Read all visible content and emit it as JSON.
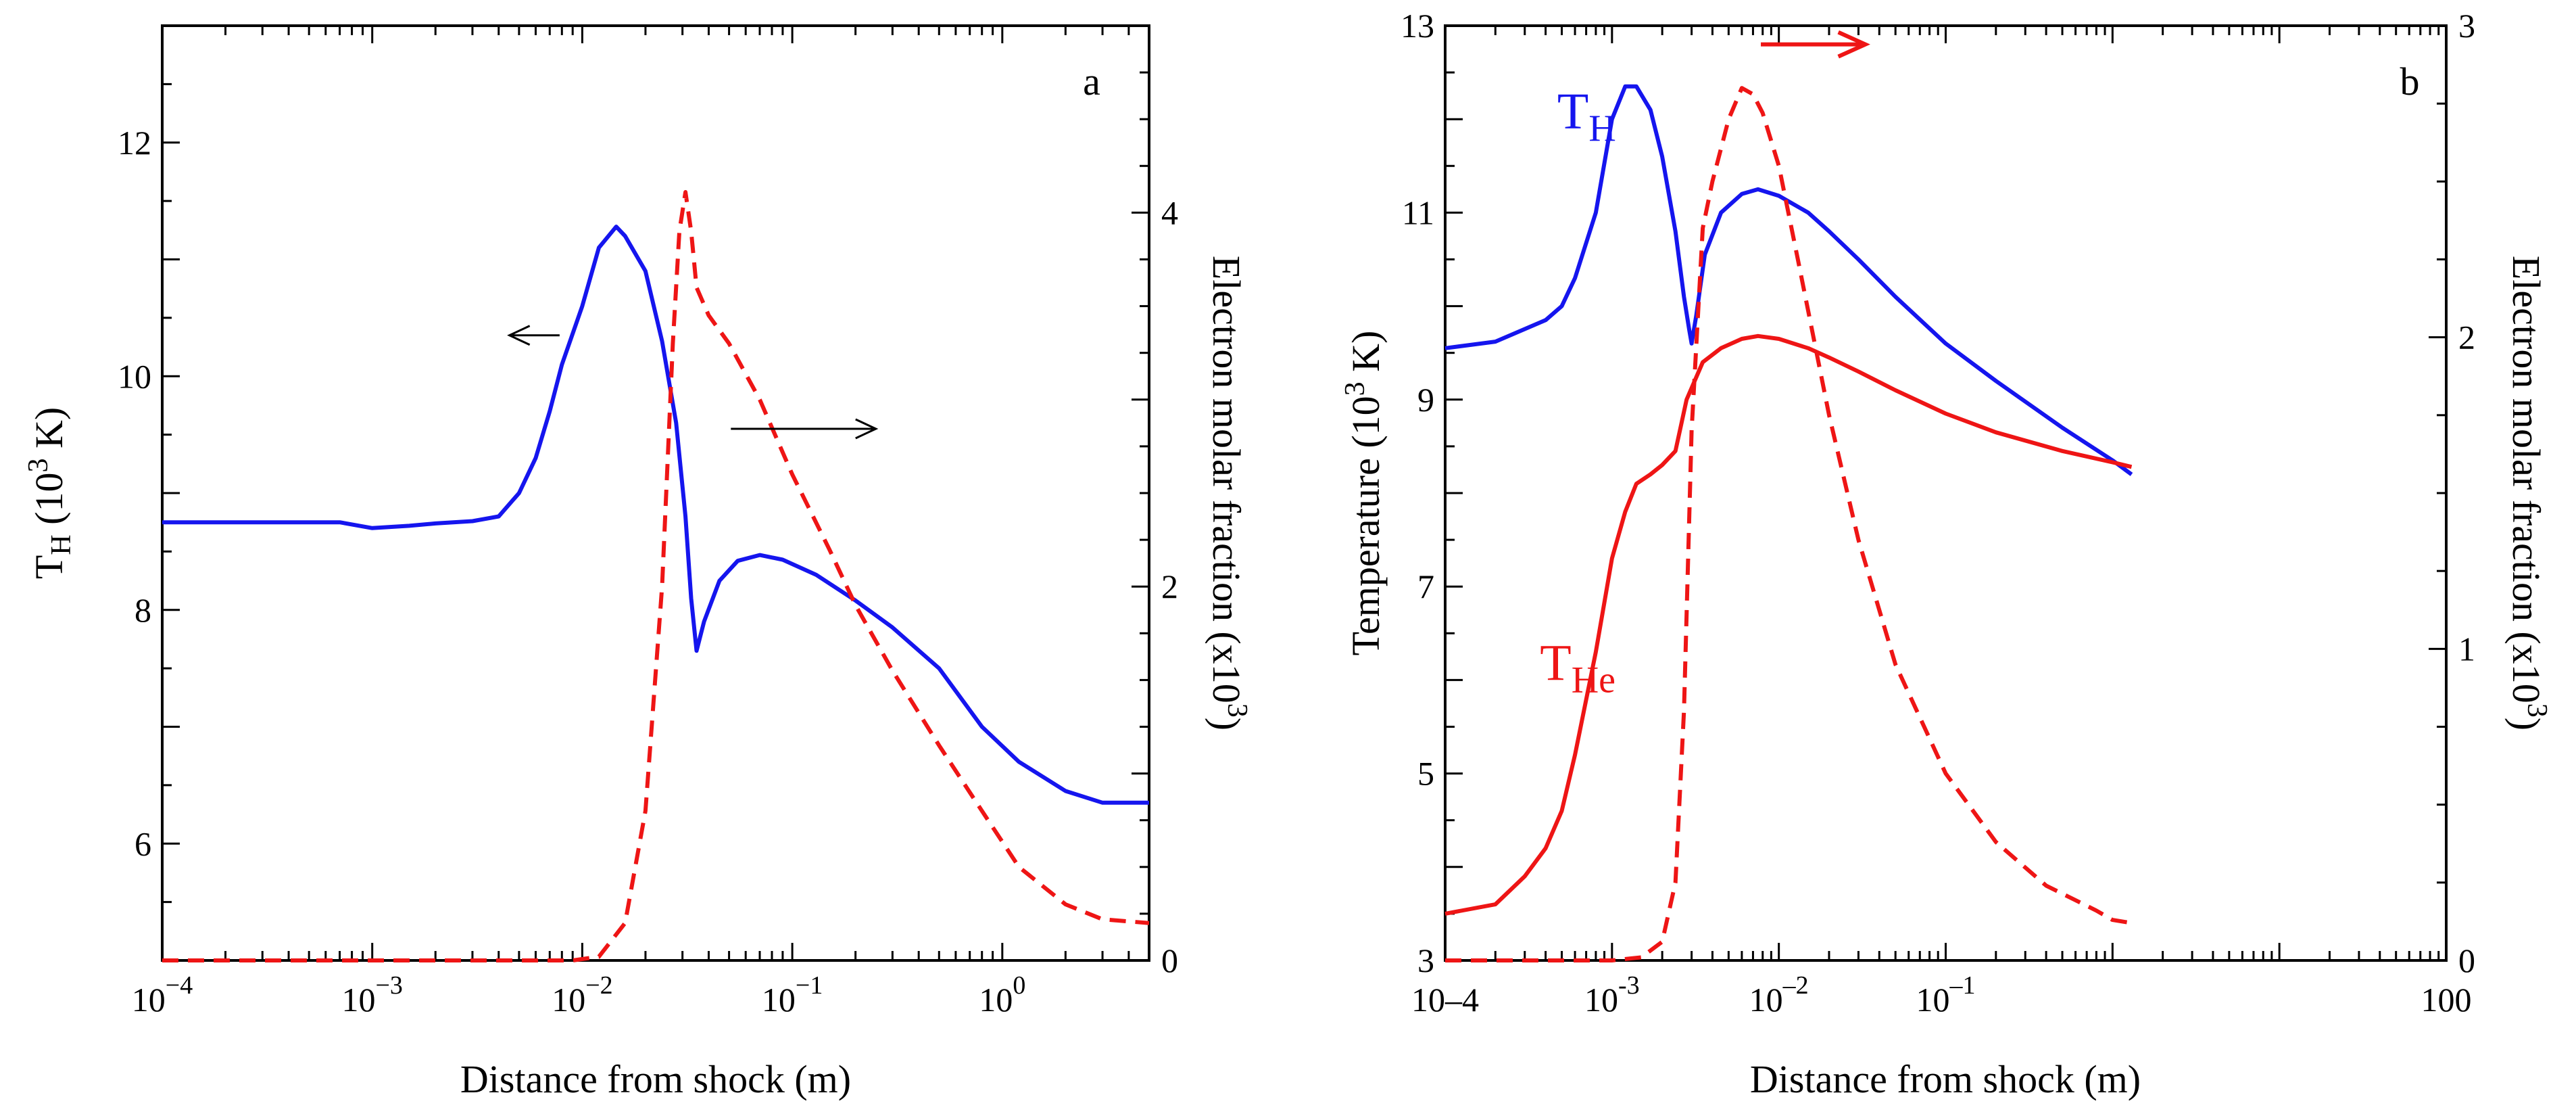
{
  "colors": {
    "blue": "#1515ee",
    "red": "#ee1515",
    "black": "#000000"
  },
  "chart_data": [
    {
      "type": "line",
      "panel_label": "a",
      "xscale": "log",
      "xlim": [
        0.0001,
        5
      ],
      "xlabel": "Distance from shock (m)",
      "x_ticks": [
        {
          "x": 0.0001,
          "base": "10",
          "exp": "−4"
        },
        {
          "x": 0.001,
          "base": "10",
          "exp": "−3"
        },
        {
          "x": 0.01,
          "base": "10",
          "exp": "−2"
        },
        {
          "x": 0.1,
          "base": "10",
          "exp": "−1"
        },
        {
          "x": 1,
          "base": "10",
          "exp": "0"
        }
      ],
      "ylim_left": [
        5,
        13
      ],
      "ylabel_left": {
        "main": "T",
        "sub": "H",
        "rest": " (10",
        "sup": "3",
        "tail": " K)"
      },
      "yticks_left": [
        6,
        8,
        10,
        12
      ],
      "ylim_right": [
        0,
        5
      ],
      "ylabel_right": {
        "text": "Electron molar fraction (x10",
        "sup": "3",
        "tail": ")"
      },
      "yticks_right": [
        0,
        2,
        4
      ],
      "series": [
        {
          "name": "T_H",
          "axis": "left",
          "color": "blue",
          "style": "solid",
          "points": [
            [
              0.0001,
              8.75
            ],
            [
              0.0002,
              8.75
            ],
            [
              0.0004,
              8.75
            ],
            [
              0.0007,
              8.75
            ],
            [
              0.001,
              8.7
            ],
            [
              0.0015,
              8.72
            ],
            [
              0.002,
              8.74
            ],
            [
              0.003,
              8.76
            ],
            [
              0.004,
              8.8
            ],
            [
              0.005,
              9.0
            ],
            [
              0.006,
              9.3
            ],
            [
              0.007,
              9.7
            ],
            [
              0.008,
              10.1
            ],
            [
              0.01,
              10.6
            ],
            [
              0.012,
              11.1
            ],
            [
              0.0145,
              11.28
            ],
            [
              0.016,
              11.2
            ],
            [
              0.02,
              10.9
            ],
            [
              0.024,
              10.3
            ],
            [
              0.028,
              9.6
            ],
            [
              0.031,
              8.8
            ],
            [
              0.033,
              8.1
            ],
            [
              0.035,
              7.65
            ],
            [
              0.038,
              7.9
            ],
            [
              0.045,
              8.25
            ],
            [
              0.055,
              8.42
            ],
            [
              0.07,
              8.47
            ],
            [
              0.09,
              8.43
            ],
            [
              0.13,
              8.3
            ],
            [
              0.2,
              8.08
            ],
            [
              0.3,
              7.85
            ],
            [
              0.5,
              7.5
            ],
            [
              0.8,
              7.0
            ],
            [
              1.2,
              6.7
            ],
            [
              2,
              6.45
            ],
            [
              3,
              6.35
            ],
            [
              5,
              6.35
            ]
          ]
        },
        {
          "name": "Electron molar fraction (a)",
          "axis": "right",
          "color": "red",
          "style": "dashed",
          "points": [
            [
              0.0001,
              0
            ],
            [
              0.003,
              0
            ],
            [
              0.009,
              0
            ],
            [
              0.012,
              0.02
            ],
            [
              0.016,
              0.2
            ],
            [
              0.02,
              0.8
            ],
            [
              0.024,
              2.0
            ],
            [
              0.027,
              3.3
            ],
            [
              0.029,
              3.9
            ],
            [
              0.031,
              4.11
            ],
            [
              0.033,
              3.9
            ],
            [
              0.035,
              3.6
            ],
            [
              0.04,
              3.45
            ],
            [
              0.05,
              3.3
            ],
            [
              0.07,
              3.0
            ],
            [
              0.1,
              2.6
            ],
            [
              0.15,
              2.2
            ],
            [
              0.2,
              1.9
            ],
            [
              0.3,
              1.55
            ],
            [
              0.5,
              1.15
            ],
            [
              0.8,
              0.8
            ],
            [
              1.2,
              0.5
            ],
            [
              2,
              0.3
            ],
            [
              3,
              0.22
            ],
            [
              5,
              0.2
            ]
          ]
        }
      ],
      "arrows": [
        {
          "direction": "left",
          "color": "black",
          "x_from": 0.0078,
          "x_to": 0.0045,
          "y_left": 10.35
        },
        {
          "direction": "right",
          "color": "black",
          "x_from": 0.051,
          "x_to": 0.25,
          "y_left": 9.55
        }
      ]
    },
    {
      "type": "line",
      "panel_label": "b",
      "xscale": "log",
      "xlim": [
        0.0001,
        100
      ],
      "xlabel": "Distance from shock (m)",
      "x_ticks": [
        {
          "x": 0.0001,
          "base": "10–4",
          "exp": ""
        },
        {
          "x": 0.001,
          "base": "10",
          "exp": "-3"
        },
        {
          "x": 0.01,
          "base": "10",
          "exp": "–2"
        },
        {
          "x": 0.1,
          "base": "10",
          "exp": "–1"
        },
        {
          "x": 100,
          "base": "100",
          "exp": ""
        }
      ],
      "ylim_left": [
        3,
        13
      ],
      "ylabel_left": {
        "main": "Temperature (10",
        "sup": "3",
        "tail": " K)"
      },
      "yticks_left": [
        3,
        5,
        7,
        9,
        11,
        13
      ],
      "ylim_right": [
        0,
        3
      ],
      "ylabel_right": {
        "text": "Electron molar fraction (x10",
        "sup": "3",
        "tail": ")"
      },
      "yticks_right": [
        0,
        1,
        2,
        3
      ],
      "series": [
        {
          "name": "T_H",
          "axis": "left",
          "color": "blue",
          "style": "solid",
          "points": [
            [
              0.0001,
              9.55
            ],
            [
              0.0002,
              9.62
            ],
            [
              0.0004,
              9.85
            ],
            [
              0.0005,
              10.0
            ],
            [
              0.0006,
              10.3
            ],
            [
              0.0008,
              11.0
            ],
            [
              0.001,
              12.0
            ],
            [
              0.0012,
              12.35
            ],
            [
              0.0014,
              12.35
            ],
            [
              0.0017,
              12.1
            ],
            [
              0.002,
              11.6
            ],
            [
              0.0024,
              10.8
            ],
            [
              0.0027,
              10.1
            ],
            [
              0.0029,
              9.75
            ],
            [
              0.003,
              9.6
            ],
            [
              0.0032,
              9.9
            ],
            [
              0.0036,
              10.55
            ],
            [
              0.0045,
              11.0
            ],
            [
              0.006,
              11.2
            ],
            [
              0.0075,
              11.25
            ],
            [
              0.01,
              11.18
            ],
            [
              0.015,
              11.0
            ],
            [
              0.02,
              10.8
            ],
            [
              0.03,
              10.5
            ],
            [
              0.05,
              10.1
            ],
            [
              0.1,
              9.6
            ],
            [
              0.2,
              9.2
            ],
            [
              0.5,
              8.7
            ],
            [
              1,
              8.35
            ],
            [
              1.3,
              8.2
            ]
          ]
        },
        {
          "name": "T_He",
          "axis": "left",
          "color": "red",
          "style": "solid",
          "points": [
            [
              0.0001,
              3.5
            ],
            [
              0.0002,
              3.6
            ],
            [
              0.0003,
              3.9
            ],
            [
              0.0004,
              4.2
            ],
            [
              0.0005,
              4.6
            ],
            [
              0.0006,
              5.2
            ],
            [
              0.0008,
              6.3
            ],
            [
              0.001,
              7.3
            ],
            [
              0.0012,
              7.8
            ],
            [
              0.0014,
              8.1
            ],
            [
              0.0017,
              8.2
            ],
            [
              0.002,
              8.3
            ],
            [
              0.0024,
              8.45
            ],
            [
              0.0028,
              9.0
            ],
            [
              0.0035,
              9.4
            ],
            [
              0.0045,
              9.55
            ],
            [
              0.006,
              9.65
            ],
            [
              0.0075,
              9.68
            ],
            [
              0.01,
              9.65
            ],
            [
              0.015,
              9.55
            ],
            [
              0.02,
              9.45
            ],
            [
              0.03,
              9.3
            ],
            [
              0.05,
              9.1
            ],
            [
              0.1,
              8.85
            ],
            [
              0.2,
              8.65
            ],
            [
              0.5,
              8.45
            ],
            [
              1,
              8.33
            ],
            [
              1.3,
              8.28
            ]
          ]
        },
        {
          "name": "Electron molar fraction (b)",
          "axis": "right",
          "color": "red",
          "style": "dashed",
          "points": [
            [
              0.0001,
              0
            ],
            [
              0.001,
              0
            ],
            [
              0.0015,
              0.01
            ],
            [
              0.002,
              0.06
            ],
            [
              0.0024,
              0.25
            ],
            [
              0.0027,
              0.8
            ],
            [
              0.003,
              1.7
            ],
            [
              0.0035,
              2.35
            ],
            [
              0.004,
              2.5
            ],
            [
              0.005,
              2.7
            ],
            [
              0.006,
              2.8
            ],
            [
              0.007,
              2.78
            ],
            [
              0.008,
              2.72
            ],
            [
              0.01,
              2.55
            ],
            [
              0.013,
              2.25
            ],
            [
              0.02,
              1.75
            ],
            [
              0.03,
              1.35
            ],
            [
              0.05,
              0.95
            ],
            [
              0.1,
              0.6
            ],
            [
              0.2,
              0.38
            ],
            [
              0.4,
              0.24
            ],
            [
              0.8,
              0.16
            ],
            [
              1,
              0.13
            ],
            [
              1.3,
              0.12
            ]
          ]
        }
      ],
      "arrows": [
        {
          "direction": "right",
          "color": "red",
          "x_from": 0.0078,
          "x_to": 0.033,
          "y_left": 12.8
        }
      ],
      "curve_labels": [
        {
          "name": "T",
          "sub": "H",
          "color": "blue",
          "x": 0.00047,
          "y_left": 11.9
        },
        {
          "name": "T",
          "sub": "He",
          "color": "red",
          "x": 0.00037,
          "y_left": 6.0
        }
      ]
    }
  ]
}
